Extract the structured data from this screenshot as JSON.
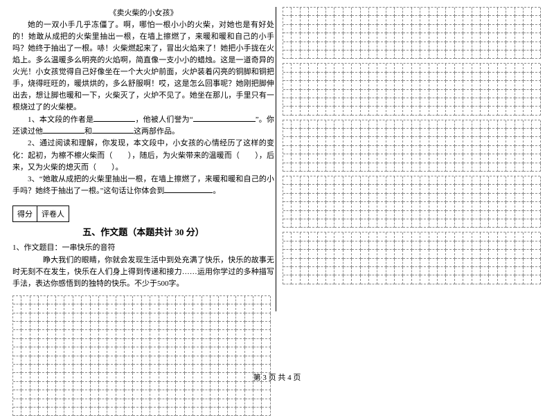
{
  "passage": {
    "title": "《卖火柴的小女孩》",
    "p1": "她的一双小手几乎冻僵了。啊，哪怕一根小小的火柴，对她也是有好处的！她敢从成把的火柴里抽出一根，在墙上擦燃了，来暖和暖和自己的小手吗？她终于抽出了一根。哧！火柴燃起来了，冒出火焰来了！她把小手拢在火焰上。多么温暖多么明亮的火焰啊，简直像一支小小的蜡烛。这是一道奇异的火光！小女孩觉得自己好像坐在一个大火炉前面，火炉装着闪亮的铜脚和铜把手，烧得旺旺的，暖烘烘的，多么舒服啊！哎，这是怎么回事呢？她刚把脚伸出去，想让脚也暖和一下，火柴灭了，火炉不见了。她坐在那儿，手里只有一根烧过了的火柴梗。",
    "q1a": "1、本文段的作者是",
    "q1b": "，他被人们誉为“",
    "q1c": "”。你还读过他",
    "q1d": "和",
    "q1e": "这两部作品。",
    "q2": "2、通过阅读和理解，你发现，本文段中，小女孩的心情经历了这样的变化：起初，为檫不檫火柴而（　　），随后，为火柴带来的温暖而（　　），后来，又为火柴的熄灭而（　　）。",
    "q3a": "3、“她敢从成把的火柴里抽出一根，在墙上擦燃了，来暖和暖和自己的小手吗？她终于抽出了一根。”这句话让你体会到",
    "q3b": "。"
  },
  "score": {
    "label_score": "得分",
    "label_reviewer": "评卷人"
  },
  "section5": {
    "title": "五、作文题（本题共计 30 分）",
    "q_label": "1、作文题目：一串快乐的音符",
    "prompt": "睁大我们的眼睛，你就会发现生活中到处充满了快乐，快乐的故事无时无刻不在发生，快乐在人们身上得到传递和接力……运用你学过的多种描写手法，表达你感悟到的独特的快乐。不少于500字。"
  },
  "grids": {
    "left_block_rows": 14,
    "left_block_cols": 30,
    "right_block_count": 5,
    "right_block_rows": 6,
    "right_block_cols": 30
  },
  "footer": "第 3 页 共 4 页"
}
